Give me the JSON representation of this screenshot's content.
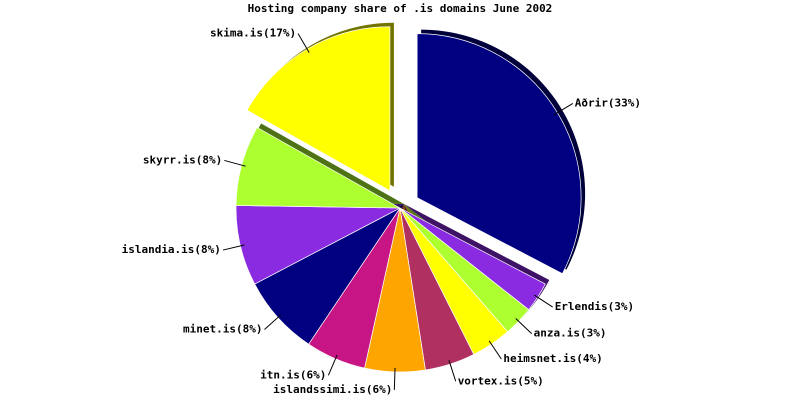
{
  "chart_data": {
    "type": "pie",
    "title": "Hosting company share of .is domains June 2002",
    "categories": [
      "Aðrir(33%)",
      "Erlendis(3%)",
      "anza.is(3%)",
      "heimsnet.is(4%)",
      "vortex.is(5%)",
      "islandssimi.is(6%)",
      "itn.is(6%)",
      "minet.is(8%)",
      "islandia.is(8%)",
      "skyrr.is(8%)",
      "skima.is(17%)"
    ],
    "values": [
      33,
      3,
      3,
      4,
      5,
      6,
      6,
      8,
      8,
      8,
      17
    ],
    "colors": [
      "#000080",
      "#8a2be2",
      "#adff2f",
      "#ffff00",
      "#b03060",
      "#ffa500",
      "#c71585",
      "#000080",
      "#8a2be2",
      "#adff2f",
      "#ffff00"
    ],
    "exploded": [
      0,
      10
    ]
  }
}
